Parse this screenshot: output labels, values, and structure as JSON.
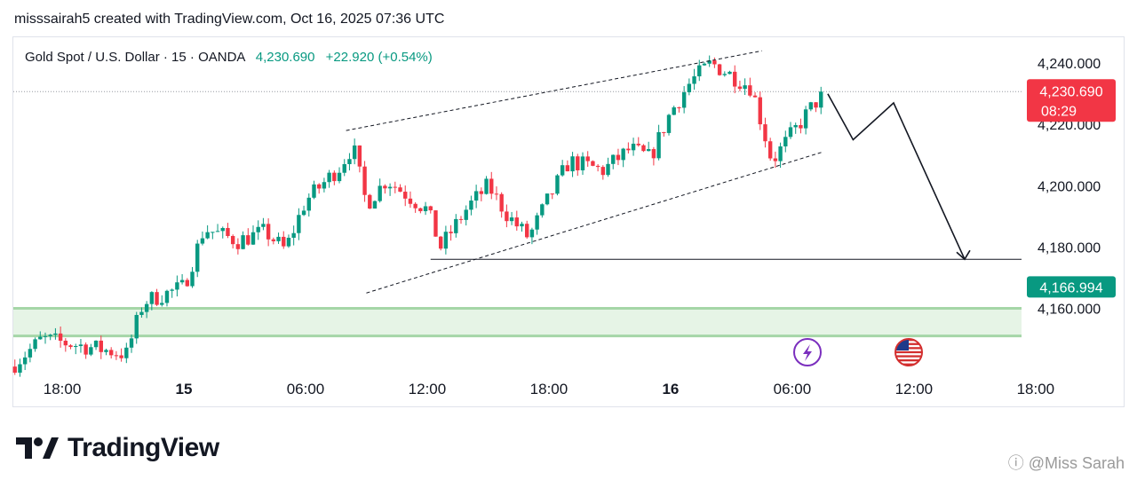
{
  "header": {
    "credit": "misssairah5 created with TradingView.com, Oct 16, 2025 07:36 UTC"
  },
  "legend": {
    "symbol": "Gold Spot / U.S. Dollar · 15 · OANDA",
    "price": "4,230.690",
    "change": "+22.920 (+0.54%)"
  },
  "badges": {
    "last_price": "4,230.690",
    "countdown": "08:29",
    "target_price": "4,166.994"
  },
  "brand": {
    "logo_text": "TradingView"
  },
  "watermark": "ⓘ @Miss Sarah",
  "colors": {
    "up": "#089981",
    "down": "#f23645",
    "zone_fill": "#e6f4e6",
    "zone_border": "#a5d6a7",
    "event_icon": "#7b2fbe"
  },
  "icons": [
    "lightning-event-icon",
    "us-flag-event-icon"
  ],
  "chart_data": {
    "type": "candlestick",
    "instrument": "Gold Spot / U.S. Dollar",
    "interval": "15",
    "source": "OANDA",
    "ylim": [
      4140,
      4250
    ],
    "y_ticks": [
      "4,240.000",
      "4,220.000",
      "4,200.000",
      "4,180.000",
      "4,160.000"
    ],
    "x_ticks": [
      "18:00",
      "15",
      "06:00",
      "12:00",
      "18:00",
      "16",
      "06:00",
      "12:00",
      "18:00"
    ],
    "anchor_points": [
      {
        "t": "Oct 14 15:40",
        "price": 4142
      },
      {
        "t": "Oct 14 17:00",
        "price": 4150
      },
      {
        "t": "Oct 14 19:40",
        "price": 4147
      },
      {
        "t": "Oct 14 21:10",
        "price": 4145
      },
      {
        "t": "Oct 14 22:00",
        "price": 4162
      },
      {
        "t": "Oct 15 00:00",
        "price": 4167
      },
      {
        "t": "Oct 15 01:00",
        "price": 4186
      },
      {
        "t": "Oct 15 02:40",
        "price": 4182
      },
      {
        "t": "Oct 15 04:00",
        "price": 4185
      },
      {
        "t": "Oct 15 05:00",
        "price": 4179
      },
      {
        "t": "Oct 15 06:00",
        "price": 4195
      },
      {
        "t": "Oct 15 07:40",
        "price": 4206
      },
      {
        "t": "Oct 15 08:20",
        "price": 4213
      },
      {
        "t": "Oct 15 09:00",
        "price": 4194
      },
      {
        "t": "Oct 15 10:00",
        "price": 4202
      },
      {
        "t": "Oct 15 12:00",
        "price": 4192
      },
      {
        "t": "Oct 15 12:40",
        "price": 4180
      },
      {
        "t": "Oct 15 14:00",
        "price": 4193
      },
      {
        "t": "Oct 15 15:00",
        "price": 4200
      },
      {
        "t": "Oct 15 16:00",
        "price": 4190
      },
      {
        "t": "Oct 15 17:00",
        "price": 4183
      },
      {
        "t": "Oct 15 18:00",
        "price": 4196
      },
      {
        "t": "Oct 15 19:00",
        "price": 4208
      },
      {
        "t": "Oct 15 20:40",
        "price": 4205
      },
      {
        "t": "Oct 15 22:00",
        "price": 4212
      },
      {
        "t": "Oct 15 23:00",
        "price": 4209
      },
      {
        "t": "Oct 16 00:00",
        "price": 4224
      },
      {
        "t": "Oct 16 01:00",
        "price": 4234
      },
      {
        "t": "Oct 16 02:00",
        "price": 4240
      },
      {
        "t": "Oct 16 03:00",
        "price": 4236
      },
      {
        "t": "Oct 16 04:00",
        "price": 4232
      },
      {
        "t": "Oct 16 05:00",
        "price": 4208
      },
      {
        "t": "Oct 16 06:00",
        "price": 4217
      },
      {
        "t": "Oct 16 07:00",
        "price": 4226
      },
      {
        "t": "Oct 16 07:36",
        "price": 4230.69
      }
    ],
    "support_zone": [
      4151,
      4160
    ],
    "horizontal_line": 4176,
    "projection_path": [
      {
        "t": "Oct 16 07:45",
        "price": 4230
      },
      {
        "t": "Oct 16 09:00",
        "price": 4215
      },
      {
        "t": "Oct 16 11:00",
        "price": 4227
      },
      {
        "t": "Oct 16 14:30",
        "price": 4176
      }
    ],
    "channel_upper": [
      {
        "t": "Oct 15 08:00",
        "price": 4218
      },
      {
        "t": "Oct 16 04:30",
        "price": 4244
      }
    ],
    "channel_lower": [
      {
        "t": "Oct 15 09:00",
        "price": 4165
      },
      {
        "t": "Oct 16 07:30",
        "price": 4211
      }
    ]
  }
}
